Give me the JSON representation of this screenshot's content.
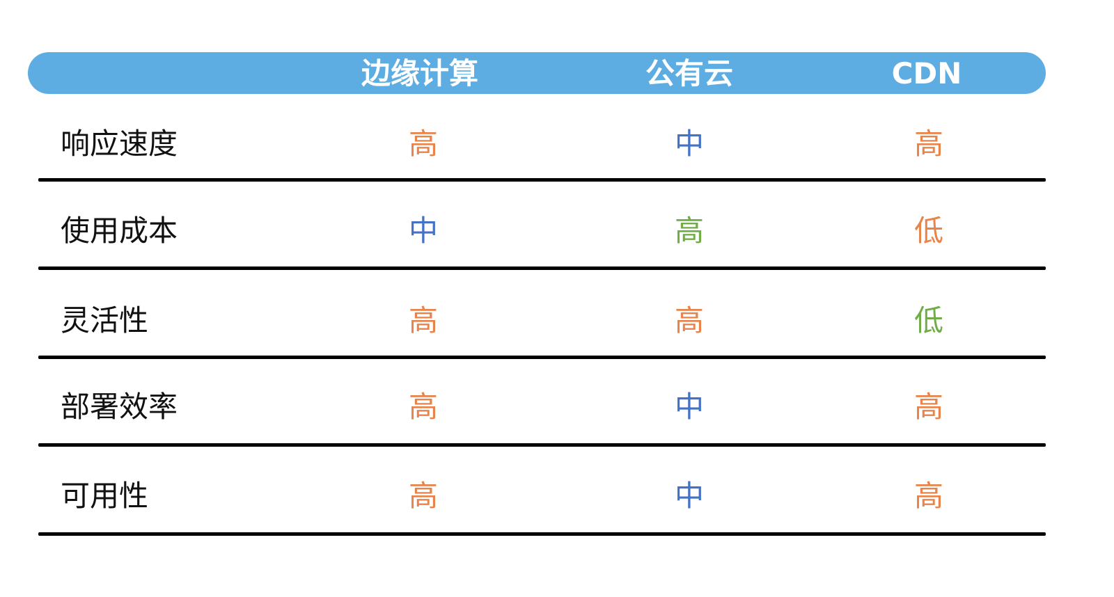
{
  "header": {
    "columns": [
      "",
      "边缘计算",
      "公有云",
      "CDN"
    ],
    "background": "#5DADE2"
  },
  "colors": {
    "orange": "#E8834A",
    "blue": "#4472C4",
    "green": "#70AD47"
  },
  "rows": [
    {
      "label": "响应速度",
      "cells": [
        {
          "text": "高",
          "color": "#E8834A"
        },
        {
          "text": "中",
          "color": "#4472C4"
        },
        {
          "text": "高",
          "color": "#E8834A"
        }
      ]
    },
    {
      "label": "使用成本",
      "cells": [
        {
          "text": "中",
          "color": "#4472C4"
        },
        {
          "text": "高",
          "color": "#70AD47"
        },
        {
          "text": "低",
          "color": "#E8834A"
        }
      ]
    },
    {
      "label": "灵活性",
      "cells": [
        {
          "text": "高",
          "color": "#E8834A"
        },
        {
          "text": "高",
          "color": "#E8834A"
        },
        {
          "text": "低",
          "color": "#70AD47"
        }
      ]
    },
    {
      "label": "部署效率",
      "cells": [
        {
          "text": "高",
          "color": "#E8834A"
        },
        {
          "text": "中",
          "color": "#4472C4"
        },
        {
          "text": "高",
          "color": "#E8834A"
        }
      ]
    },
    {
      "label": "可用性",
      "cells": [
        {
          "text": "高",
          "color": "#E8834A"
        },
        {
          "text": "中",
          "color": "#4472C4"
        },
        {
          "text": "高",
          "color": "#E8834A"
        }
      ]
    }
  ]
}
